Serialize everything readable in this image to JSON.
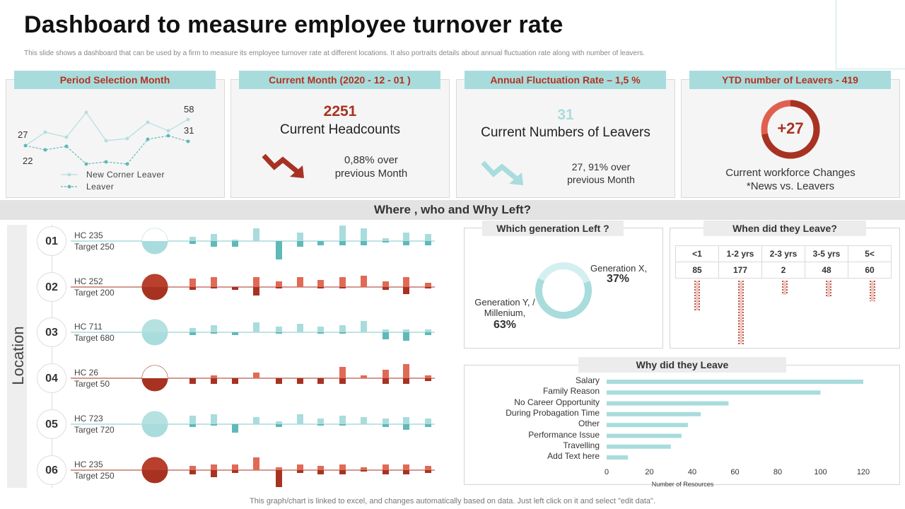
{
  "header": {
    "title": "Dashboard to measure employee turnover rate",
    "subtitle": "This slide shows a dashboard that can be used by a firm to measure its employee turnover rate at different locations. It also portraits details about annual fluctuation rate along with number of leavers."
  },
  "cards": {
    "period": {
      "title": "Period Selection Month",
      "label_high": "58",
      "label_mid": "31",
      "label_left": "27",
      "label_low": "22",
      "legend_1": "New Corner  Leaver",
      "legend_2": "Leaver"
    },
    "headcount": {
      "title": "Current Month (2020 - 12 - 01 )",
      "value": "2251",
      "label": "Current  Headcounts",
      "change_1": "0,88% over",
      "change_2": "previous Month"
    },
    "leavers": {
      "title": "Annual Fluctuation Rate – 1,5 %",
      "value": "31",
      "label": "Current Numbers  of Leavers",
      "change_1": "27, 91% over",
      "change_2": "previous Month"
    },
    "ytd": {
      "title": "YTD number of Leavers - 419",
      "value": "+27",
      "label_1": "Current workforce Changes",
      "label_2": "*News vs. Leavers",
      "ring_fraction": 0.72
    }
  },
  "band_title": "Where , who and Why Left?",
  "location_label": "Location",
  "locations": [
    {
      "num": "01",
      "hc": "HC 235",
      "target": "Target  250",
      "color": "#7ec8c8",
      "fill": "teal"
    },
    {
      "num": "02",
      "hc": "HC 252",
      "target": "Target  200",
      "color": "#c0392b",
      "fill": "red"
    },
    {
      "num": "03",
      "hc": "HC 711",
      "target": "Target  680",
      "color": "#7ec8c8",
      "fill": "teal"
    },
    {
      "num": "04",
      "hc": "HC 26",
      "target": "Target  50",
      "color": "#c0392b",
      "fill": "red"
    },
    {
      "num": "05",
      "hc": "HC 723",
      "target": "Target  720",
      "color": "#7ec8c8",
      "fill": "teal"
    },
    {
      "num": "06",
      "hc": "HC 235",
      "target": "Target  250",
      "color": "#c0392b",
      "fill": "red"
    }
  ],
  "generation": {
    "title": "Which generation Left ?",
    "gen_x_label": "Generation  X,",
    "gen_x_value": "37%",
    "gen_y_label_1": "Generation  Y, /",
    "gen_y_label_2": "Millenium,",
    "gen_y_value": "63%"
  },
  "when": {
    "title": "When did they Leave?",
    "headers": [
      "<1",
      "1-2 yrs",
      "2-3 yrs",
      "3-5 yrs",
      "5<"
    ],
    "values": [
      "85",
      "177",
      "2",
      "48",
      "60"
    ]
  },
  "chart_data": {
    "type": "bar",
    "title": "Why did they Leave",
    "categories": [
      "Salary",
      "Family Reason",
      "No Career Opportunity",
      "During Probagation Time",
      "Other",
      "Performance Issue",
      "Travelling",
      "Add Text here"
    ],
    "values": [
      120,
      100,
      57,
      44,
      38,
      35,
      30,
      10
    ],
    "xlabel": "Number of Resources",
    "xlim": [
      0,
      120
    ],
    "xticks": [
      "0",
      "20",
      "40",
      "60",
      "80",
      "100",
      "120"
    ],
    "color": "#a9dcdc"
  },
  "footer": "This graph/chart is linked to excel,  and changes automatically based on data. Just left click on it and select \"edit data\"."
}
